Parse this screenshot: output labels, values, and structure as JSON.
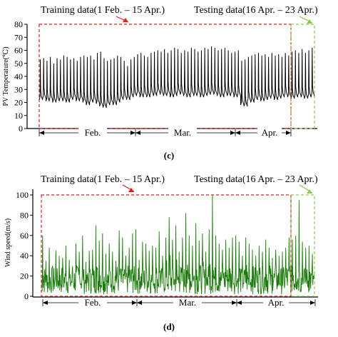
{
  "chart_data": [
    {
      "type": "line",
      "panel": "(c)",
      "ylabel": "PV Temperature(℃)",
      "ylim": [
        0,
        80
      ],
      "yticks": [
        0,
        10,
        20,
        30,
        40,
        50,
        60,
        70,
        80
      ],
      "months": [
        "Feb.",
        "Mar.",
        "Apr."
      ],
      "train_label": "Training data(1 Feb. – 15 Apr.)",
      "test_label": "Testing data(16 Apr. – 23 Apr.)",
      "line_color": "#000000",
      "train_box_color": "#dd2222",
      "test_box_color": "#88cc55",
      "days": 82,
      "split_day": 74,
      "series": [
        {
          "values": {
            "daily_max": [
              53,
              54,
              52,
              55,
              50,
              54,
              53,
              56,
              55,
              53,
              54,
              52,
              55,
              56,
              55,
              56,
              53,
              58,
              59,
              54,
              52,
              53,
              54,
              56,
              55,
              52,
              48,
              53,
              55,
              57,
              58,
              56,
              55,
              58,
              59,
              60,
              59,
              61,
              58,
              60,
              62,
              61,
              58,
              60,
              59,
              62,
              61,
              59,
              60,
              62,
              61,
              63,
              62,
              60,
              61,
              62,
              60,
              58,
              59,
              60,
              52,
              53,
              55,
              56,
              57,
              58,
              56,
              57,
              55,
              58,
              56,
              57,
              55,
              58,
              56,
              59,
              60,
              58,
              61,
              58,
              60,
              62
            ],
            "daily_min": [
              22,
              23,
              21,
              22,
              20,
              21,
              22,
              21,
              20,
              22,
              23,
              21,
              22,
              20,
              18,
              20,
              21,
              19,
              17,
              16,
              18,
              19,
              18,
              20,
              22,
              23,
              22,
              24,
              25,
              26,
              24,
              25,
              24,
              26,
              25,
              27,
              26,
              25,
              26,
              24,
              25,
              27,
              26,
              25,
              24,
              26,
              25,
              26,
              24,
              25,
              26,
              27,
              26,
              25,
              24,
              26,
              25,
              26,
              24,
              25,
              18,
              17,
              21,
              20,
              22,
              23,
              21,
              22,
              23,
              24,
              22,
              23,
              24,
              25,
              24,
              23,
              24,
              25,
              24,
              23,
              24,
              25
            ]
          }
        }
      ]
    },
    {
      "type": "line",
      "panel": "(d)",
      "ylabel": "Wind speed(m/s)",
      "ylim": [
        0,
        100
      ],
      "yticks": [
        0,
        20,
        40,
        60,
        80,
        100
      ],
      "months": [
        "Feb.",
        "Mar.",
        "Apr."
      ],
      "train_label": "Training data(1 Feb. – 15 Apr.)",
      "test_label": "Testing data(16 Apr. – 23 Apr.)",
      "line_color": "#1a7a0a",
      "train_box_color": "#dd2222",
      "test_box_color": "#88cc55",
      "days": 82,
      "split_day": 74,
      "series": [
        {
          "values": {
            "daily_peak": [
              60,
              35,
              48,
              30,
              45,
              40,
              38,
              50,
              36,
              30,
              52,
              44,
              60,
              34,
              45,
              46,
              70,
              55,
              62,
              42,
              52,
              44,
              35,
              65,
              58,
              40,
              48,
              62,
              66,
              36,
              54,
              52,
              45,
              50,
              48,
              64,
              40,
              58,
              78,
              56,
              70,
              44,
              58,
              82,
              60,
              50,
              72,
              55,
              62,
              44,
              66,
              100,
              60,
              52,
              46,
              56,
              48,
              58,
              60,
              54,
              40,
              58,
              52,
              46,
              40,
              50,
              44,
              56,
              48,
              38,
              46,
              40,
              44,
              48,
              58,
              56,
              60,
              95,
              54,
              48,
              50,
              42
            ],
            "daily_base": [
              8,
              10,
              6,
              9,
              8,
              7,
              10,
              9,
              6,
              8,
              10,
              12,
              8,
              6,
              9,
              10,
              12,
              8,
              10,
              8,
              7,
              9,
              12,
              10,
              8,
              9,
              11,
              10,
              8,
              9,
              10,
              12,
              9,
              8,
              10,
              11,
              9,
              10,
              12,
              10,
              8,
              11,
              10,
              12,
              9,
              10,
              11,
              12,
              10,
              9,
              11,
              14,
              10,
              9,
              11,
              10,
              12,
              10,
              9,
              11,
              8,
              10,
              9,
              11,
              10,
              8,
              9,
              10,
              11,
              9,
              10,
              8,
              9,
              11,
              12,
              10,
              11,
              14,
              10,
              9,
              10,
              8
            ]
          }
        }
      ]
    }
  ]
}
